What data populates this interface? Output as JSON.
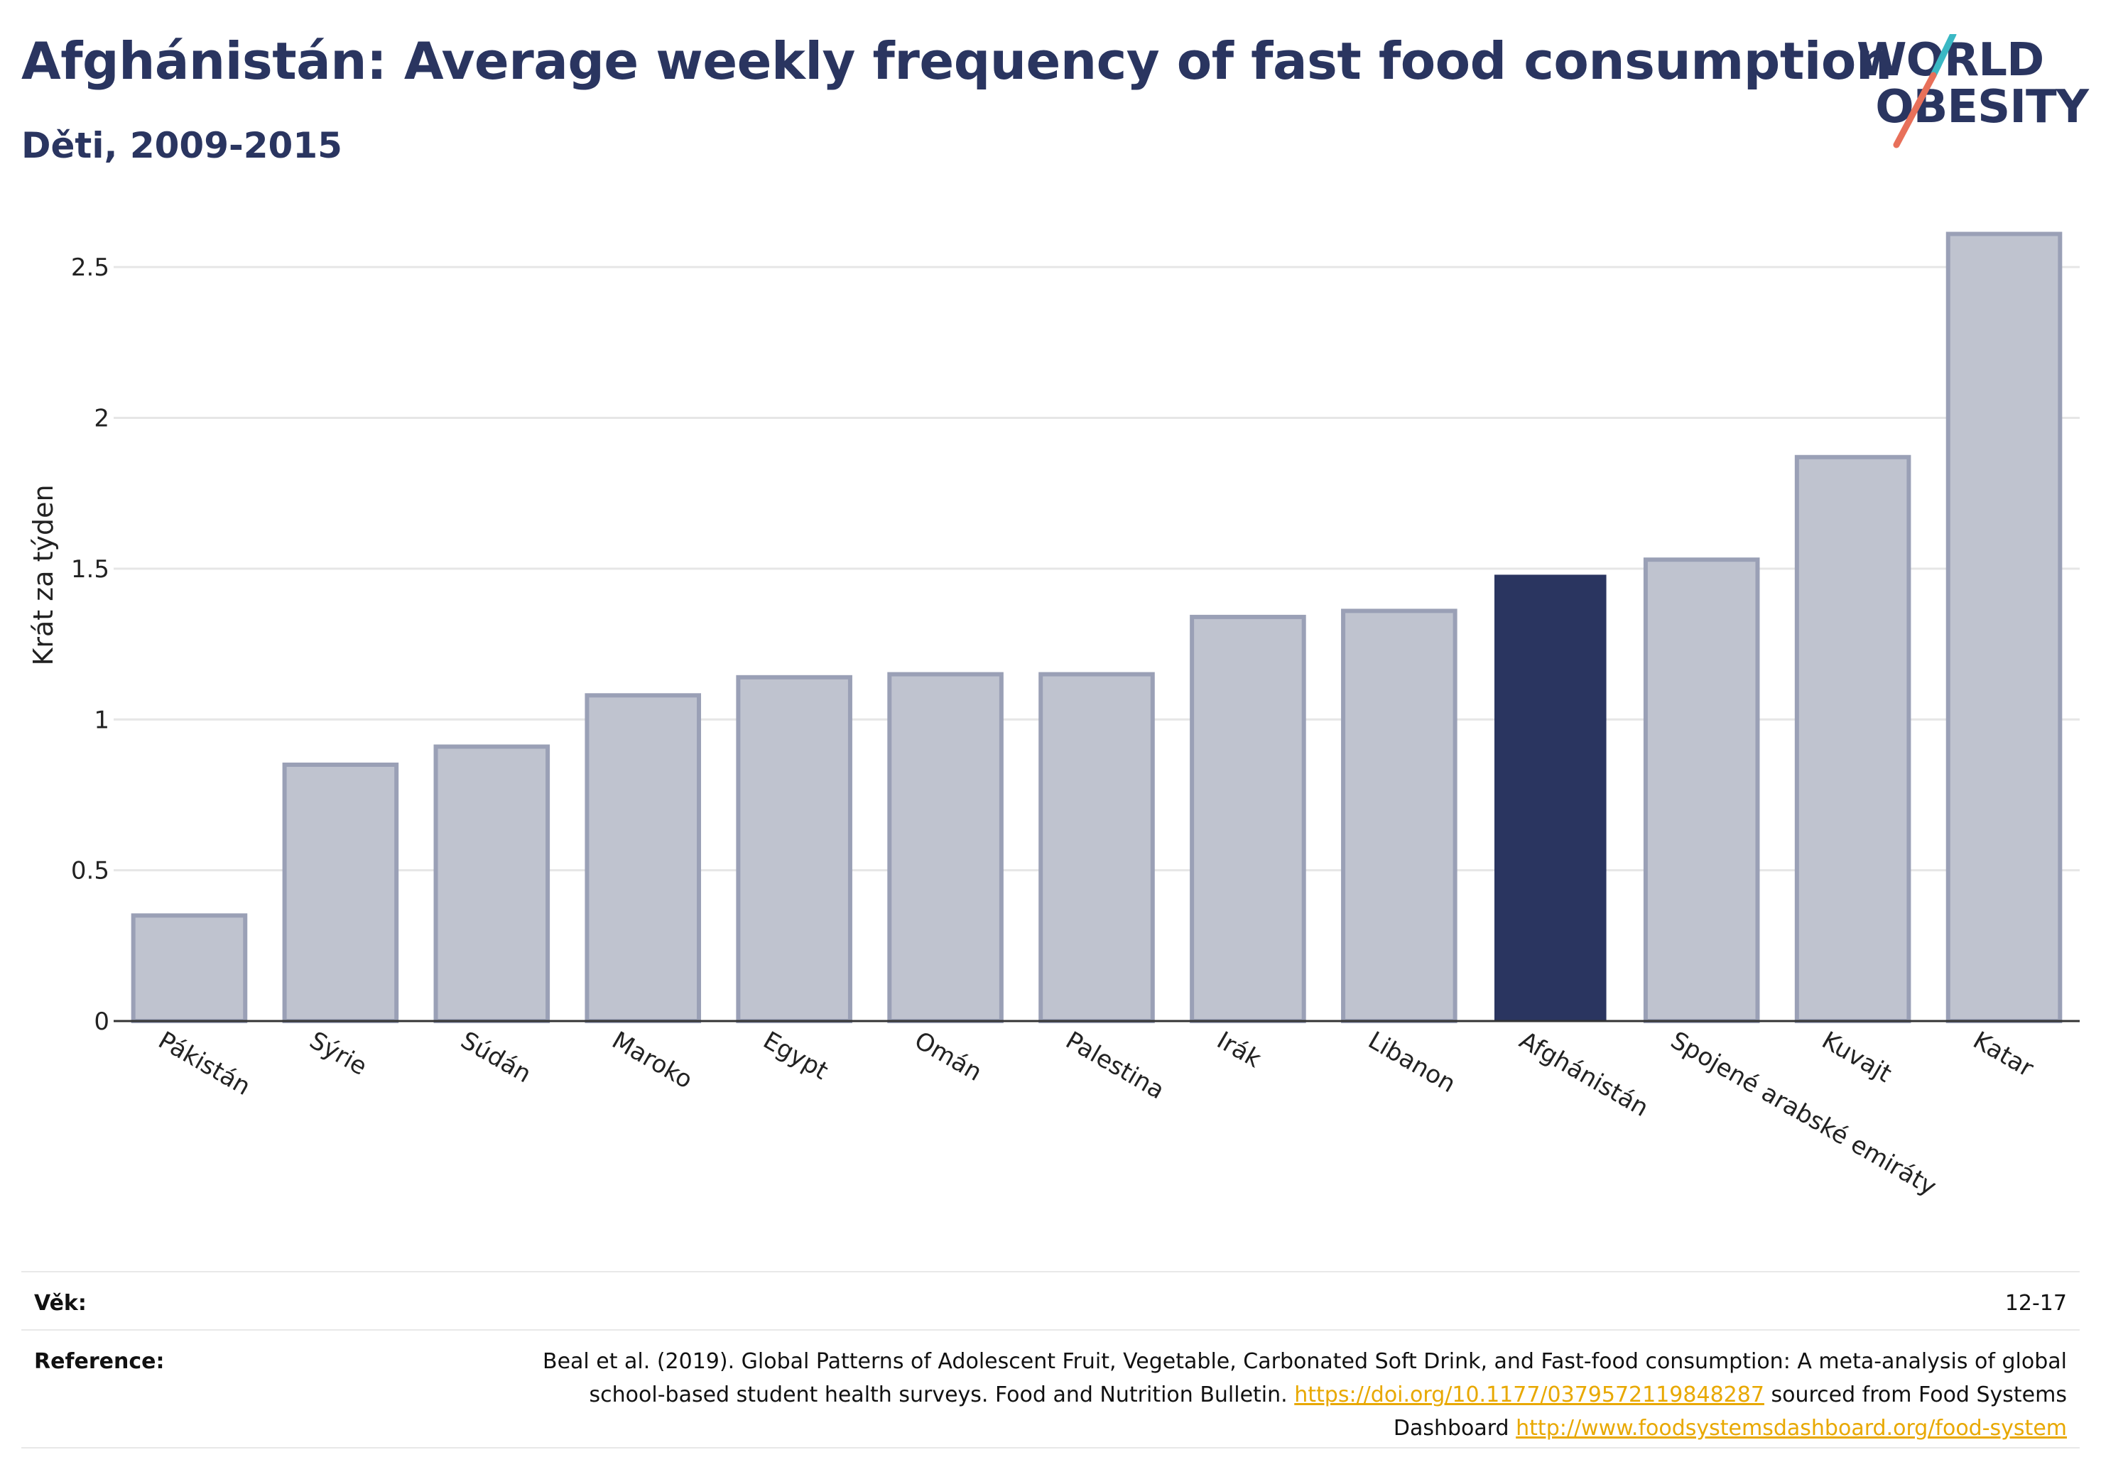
{
  "header": {
    "title": "Afghánistán: Average weekly frequency of fast food consumption",
    "subtitle": "Děti, 2009-2015"
  },
  "logo": {
    "line1": "WORLD",
    "line2": "OBESITY",
    "colors": {
      "text": "#2a3560",
      "slash_top": "#3ab8c4",
      "slash_bottom": "#e8705a"
    }
  },
  "chart_data": {
    "type": "bar",
    "title": "Afghánistán: Average weekly frequency of fast food consumption",
    "subtitle": "Děti, 2009-2015",
    "xlabel": "",
    "ylabel": "Krát za týden",
    "ylim": [
      0,
      2.75
    ],
    "yticks": [
      0,
      0.5,
      1,
      1.5,
      2,
      2.5
    ],
    "ytick_labels": [
      "0",
      "0.5",
      "1",
      "1.5",
      "2",
      "2.5"
    ],
    "grid": true,
    "highlight": "Afghánistán",
    "colors": {
      "bar": "#bfc3cf",
      "bar_border": "#9aa0b6",
      "highlight": "#2a3560"
    },
    "categories": [
      "Pákistán",
      "Sýrie",
      "Súdán",
      "Maroko",
      "Egypt",
      "Omán",
      "Palestina",
      "Irák",
      "Libanon",
      "Afghánistán",
      "Spojené arabské emiráty",
      "Kuvajt",
      "Katar"
    ],
    "values": [
      0.35,
      0.85,
      0.91,
      1.08,
      1.14,
      1.15,
      1.15,
      1.34,
      1.36,
      1.48,
      1.53,
      1.87,
      2.61
    ]
  },
  "footer": {
    "age_label": "Věk:",
    "age_value": "12-17",
    "reference_label": "Reference:",
    "reference_text_1": "Beal et al. (2019). Global Patterns of Adolescent Fruit, Vegetable, Carbonated Soft Drink, and Fast-food consumption: A meta-analysis of global school-based student health surveys. Food and Nutrition Bulletin.",
    "reference_link_1": "https://doi.org/10.1177/0379572119848287",
    "reference_text_2": "sourced from Food Systems Dashboard",
    "reference_link_2": "http://www.foodsystemsdashboard.org/food-system"
  }
}
